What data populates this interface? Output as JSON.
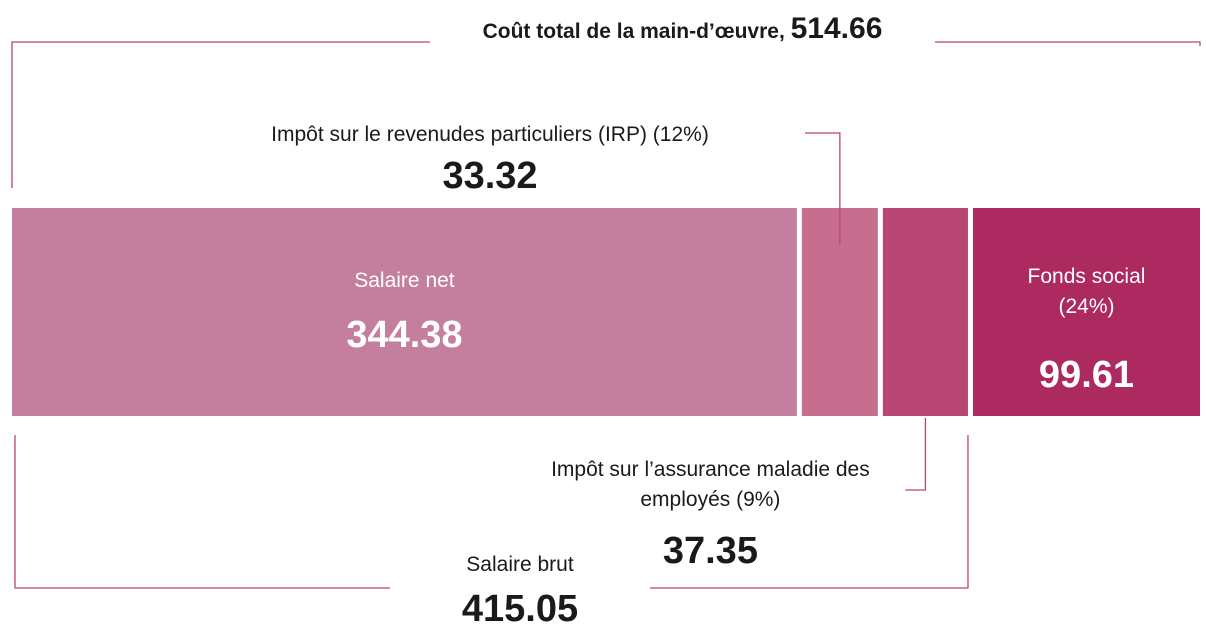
{
  "chart_data": {
    "type": "bar",
    "orientation": "horizontal-stacked",
    "total": {
      "label": "Coût total de la main-d’œuvre,",
      "value": 514.66
    },
    "subtotal": {
      "label": "Salaire brut",
      "value": 415.05
    },
    "series": [
      {
        "name": "Salaire net",
        "color": "#c47f9e",
        "values": [
          344.38
        ]
      },
      {
        "name": "Impôt sur le revenudes particuliers (IRP) (12%)",
        "color": "#c76e8e",
        "values": [
          33.32
        ]
      },
      {
        "name": "Impôt sur l’assurance maladie des employés (9%)",
        "color": "#b94574",
        "values": [
          37.35
        ]
      },
      {
        "name": "Fonds social (24%)",
        "color": "#ad2a60",
        "values": [
          99.61
        ]
      }
    ]
  }
}
